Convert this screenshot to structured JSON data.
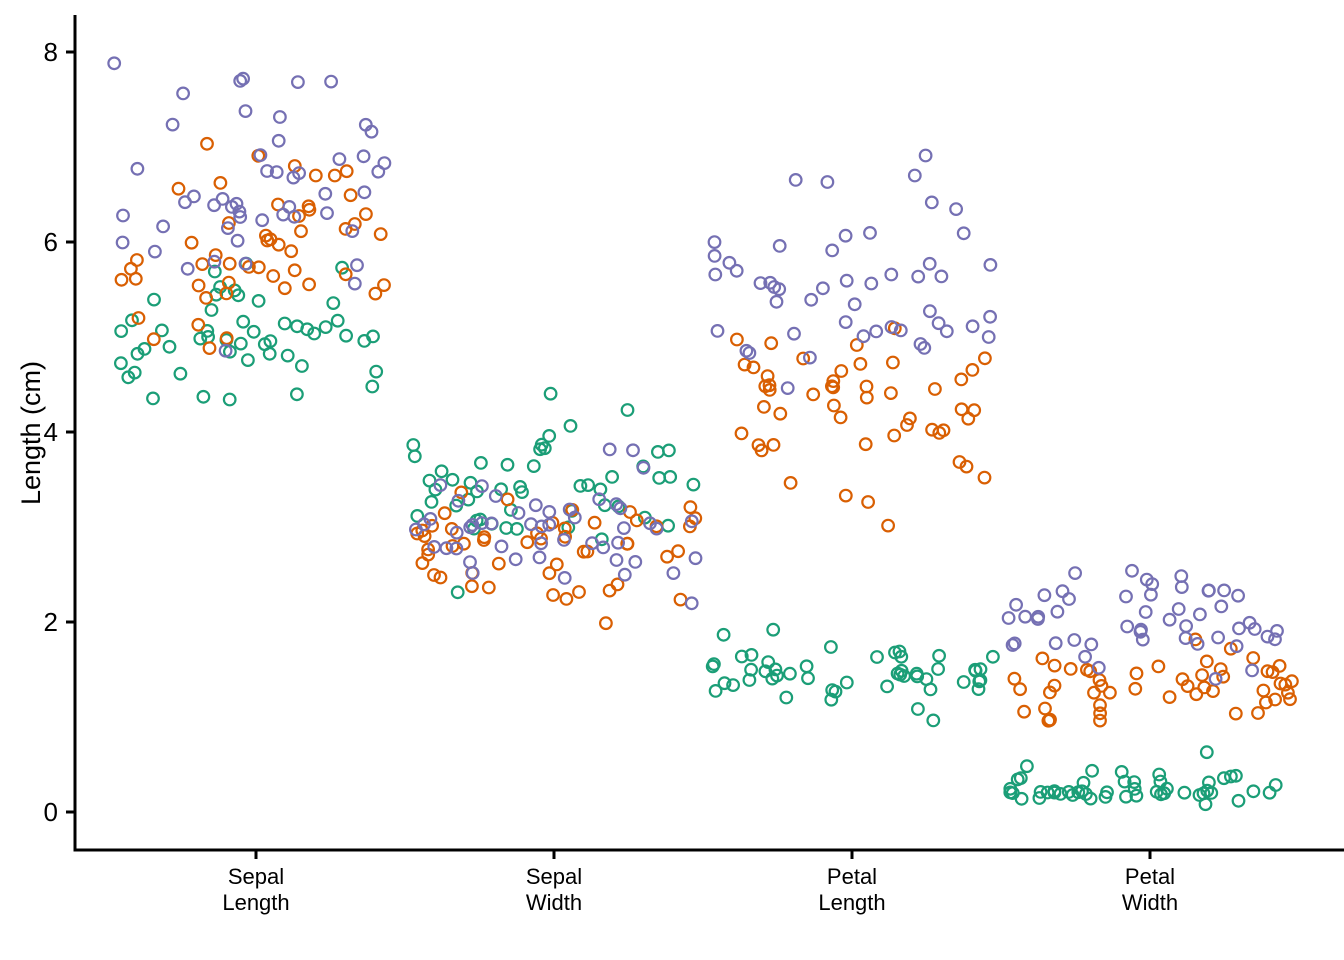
{
  "figure": {
    "background": "#FFFFFF",
    "axis_color": "#000000"
  },
  "chart_data": {
    "type": "scatter",
    "variant": "jittered strip plot, open circles, no legend, no grid",
    "title": "",
    "xlabel": "",
    "ylabel": "Length (cm)",
    "ylim": [
      -0.4,
      8.4
    ],
    "yticks": [
      0,
      2,
      4,
      6,
      8
    ],
    "grid": false,
    "legend": "none",
    "marker": {
      "shape": "open-circle"
    },
    "categories": [
      {
        "key": "sepal_length",
        "label_line1": "Sepal",
        "label_line2": "Length"
      },
      {
        "key": "sepal_width",
        "label_line1": "Sepal",
        "label_line2": "Width"
      },
      {
        "key": "petal_length",
        "label_line1": "Petal",
        "label_line2": "Length"
      },
      {
        "key": "petal_width",
        "label_line1": "Petal",
        "label_line2": "Width"
      }
    ],
    "series": [
      {
        "name": "green",
        "color": "#1B9E77",
        "values": {
          "sepal_length": [
            5.1,
            4.9,
            4.7,
            4.6,
            5.0,
            5.4,
            4.6,
            5.0,
            4.4,
            4.9,
            5.4,
            4.8,
            4.8,
            4.3,
            5.8,
            5.7,
            5.4,
            5.1,
            5.7,
            5.1,
            5.4,
            5.1,
            4.6,
            5.1,
            4.8,
            5.0,
            5.0,
            5.2,
            5.2,
            4.7,
            4.8,
            5.4,
            5.2,
            5.5,
            4.9,
            5.0,
            5.5,
            4.9,
            4.4,
            5.1,
            5.0,
            4.5,
            4.4,
            5.0,
            5.1,
            4.8,
            5.1,
            4.6,
            5.3,
            5.0
          ],
          "sepal_width": [
            3.5,
            3.0,
            3.2,
            3.1,
            3.6,
            3.9,
            3.4,
            3.4,
            2.9,
            3.1,
            3.7,
            3.4,
            3.0,
            3.0,
            4.0,
            4.4,
            3.9,
            3.5,
            3.8,
            3.8,
            3.4,
            3.7,
            3.6,
            3.3,
            3.4,
            3.0,
            3.4,
            3.5,
            3.4,
            3.2,
            3.1,
            3.4,
            4.1,
            4.2,
            3.1,
            3.2,
            3.5,
            3.6,
            3.0,
            3.4,
            3.5,
            2.3,
            3.2,
            3.5,
            3.8,
            3.0,
            3.8,
            3.2,
            3.7,
            3.3
          ],
          "petal_length": [
            1.4,
            1.4,
            1.3,
            1.5,
            1.4,
            1.7,
            1.4,
            1.5,
            1.4,
            1.5,
            1.5,
            1.6,
            1.4,
            1.1,
            1.2,
            1.5,
            1.3,
            1.4,
            1.7,
            1.5,
            1.7,
            1.5,
            1.0,
            1.7,
            1.9,
            1.6,
            1.6,
            1.5,
            1.4,
            1.6,
            1.6,
            1.5,
            1.5,
            1.4,
            1.5,
            1.2,
            1.3,
            1.4,
            1.3,
            1.5,
            1.3,
            1.3,
            1.3,
            1.6,
            1.9,
            1.4,
            1.6,
            1.4,
            1.5,
            1.4
          ],
          "petal_width": [
            0.2,
            0.2,
            0.2,
            0.2,
            0.2,
            0.4,
            0.3,
            0.2,
            0.2,
            0.1,
            0.2,
            0.2,
            0.1,
            0.1,
            0.2,
            0.4,
            0.4,
            0.3,
            0.3,
            0.3,
            0.2,
            0.4,
            0.2,
            0.5,
            0.2,
            0.2,
            0.4,
            0.2,
            0.2,
            0.2,
            0.2,
            0.4,
            0.1,
            0.2,
            0.2,
            0.2,
            0.2,
            0.1,
            0.2,
            0.2,
            0.3,
            0.3,
            0.2,
            0.6,
            0.4,
            0.3,
            0.2,
            0.2,
            0.2,
            0.2
          ]
        }
      },
      {
        "name": "orange",
        "color": "#D95F02",
        "values": {
          "sepal_length": [
            7.0,
            6.4,
            6.9,
            5.5,
            6.5,
            5.7,
            6.3,
            4.9,
            6.6,
            5.2,
            5.0,
            5.9,
            6.0,
            6.1,
            5.6,
            6.7,
            5.6,
            5.8,
            6.2,
            5.6,
            5.9,
            6.1,
            6.3,
            6.1,
            6.4,
            6.6,
            6.8,
            6.7,
            6.0,
            5.7,
            5.5,
            5.5,
            5.8,
            6.0,
            5.4,
            6.0,
            6.7,
            6.3,
            5.6,
            5.5,
            5.5,
            6.1,
            5.8,
            5.0,
            5.6,
            5.7,
            5.7,
            6.2,
            5.1,
            5.7
          ],
          "sepal_width": [
            3.2,
            3.2,
            3.1,
            2.3,
            2.8,
            2.8,
            3.3,
            2.4,
            2.9,
            2.7,
            2.0,
            3.0,
            2.2,
            2.9,
            2.9,
            3.1,
            3.0,
            2.7,
            2.2,
            2.5,
            3.2,
            2.8,
            2.5,
            2.8,
            2.9,
            3.0,
            2.8,
            3.0,
            2.9,
            2.6,
            2.4,
            2.4,
            2.7,
            2.7,
            3.0,
            3.4,
            3.1,
            2.3,
            3.0,
            2.5,
            2.6,
            3.0,
            2.6,
            2.3,
            2.7,
            3.0,
            2.9,
            2.9,
            2.5,
            2.8
          ],
          "petal_length": [
            4.7,
            4.5,
            4.9,
            4.0,
            4.6,
            4.5,
            4.7,
            3.3,
            4.6,
            3.9,
            3.5,
            4.2,
            4.0,
            4.7,
            3.6,
            4.4,
            4.5,
            4.1,
            4.5,
            3.9,
            4.8,
            4.0,
            4.9,
            4.7,
            4.3,
            4.4,
            4.8,
            5.0,
            4.5,
            3.5,
            3.8,
            3.7,
            3.9,
            5.1,
            4.5,
            4.5,
            4.7,
            4.4,
            4.1,
            4.0,
            4.4,
            4.6,
            4.0,
            3.3,
            4.2,
            4.2,
            4.2,
            4.3,
            3.0,
            4.1
          ],
          "petal_width": [
            1.4,
            1.5,
            1.5,
            1.3,
            1.5,
            1.3,
            1.6,
            1.0,
            1.3,
            1.4,
            1.0,
            1.5,
            1.0,
            1.4,
            1.3,
            1.4,
            1.5,
            1.0,
            1.5,
            1.1,
            1.8,
            1.3,
            1.5,
            1.2,
            1.3,
            1.4,
            1.4,
            1.7,
            1.5,
            1.0,
            1.1,
            1.0,
            1.2,
            1.6,
            1.5,
            1.6,
            1.5,
            1.3,
            1.3,
            1.3,
            1.2,
            1.4,
            1.2,
            1.0,
            1.3,
            1.2,
            1.3,
            1.3,
            1.1,
            1.3
          ]
        }
      },
      {
        "name": "purple",
        "color": "#7570B3",
        "values": {
          "sepal_length": [
            6.3,
            5.8,
            7.1,
            6.3,
            6.5,
            7.6,
            4.9,
            7.3,
            6.7,
            7.2,
            6.5,
            6.4,
            6.8,
            5.7,
            5.8,
            6.4,
            6.5,
            7.7,
            7.7,
            6.0,
            6.9,
            5.6,
            7.7,
            6.3,
            6.7,
            7.2,
            6.2,
            6.1,
            6.4,
            7.2,
            7.4,
            7.9,
            6.4,
            6.3,
            6.1,
            7.7,
            6.3,
            6.4,
            6.0,
            6.9,
            6.7,
            6.9,
            5.8,
            6.8,
            6.7,
            6.7,
            6.3,
            6.5,
            6.2,
            5.9
          ],
          "sepal_width": [
            3.3,
            2.7,
            3.0,
            2.9,
            3.0,
            3.0,
            2.5,
            2.9,
            2.5,
            3.6,
            3.2,
            2.7,
            3.0,
            2.5,
            2.8,
            3.2,
            3.0,
            3.8,
            2.6,
            2.2,
            3.2,
            2.8,
            2.8,
            2.7,
            3.3,
            3.2,
            2.8,
            3.0,
            2.8,
            3.0,
            2.8,
            3.8,
            2.8,
            2.8,
            2.6,
            3.0,
            3.4,
            3.1,
            3.0,
            3.1,
            3.1,
            3.1,
            2.7,
            3.2,
            3.3,
            3.0,
            2.5,
            3.0,
            3.4,
            3.0
          ],
          "petal_length": [
            6.0,
            5.1,
            5.9,
            5.6,
            5.8,
            6.6,
            4.5,
            6.3,
            5.8,
            6.1,
            5.1,
            5.3,
            5.5,
            5.0,
            5.1,
            5.3,
            5.5,
            6.7,
            6.9,
            5.0,
            5.7,
            4.9,
            6.7,
            4.9,
            5.7,
            6.0,
            4.8,
            4.9,
            5.6,
            5.8,
            6.1,
            6.4,
            5.6,
            5.1,
            5.6,
            6.1,
            5.6,
            5.5,
            4.8,
            5.4,
            5.6,
            5.1,
            5.1,
            5.9,
            5.7,
            5.2,
            5.0,
            5.2,
            5.4,
            5.1
          ],
          "petal_width": [
            2.5,
            1.9,
            2.1,
            1.8,
            2.2,
            2.1,
            1.7,
            1.8,
            1.8,
            2.5,
            2.0,
            1.9,
            2.1,
            2.0,
            2.4,
            2.3,
            1.8,
            2.2,
            2.3,
            1.5,
            2.3,
            2.0,
            2.0,
            1.8,
            2.1,
            1.8,
            1.8,
            1.8,
            2.1,
            1.6,
            1.9,
            2.0,
            2.2,
            1.5,
            1.4,
            2.3,
            2.4,
            1.8,
            1.8,
            2.1,
            2.4,
            2.3,
            1.9,
            2.3,
            2.5,
            2.3,
            1.9,
            2.0,
            2.3,
            1.8
          ]
        }
      }
    ]
  }
}
